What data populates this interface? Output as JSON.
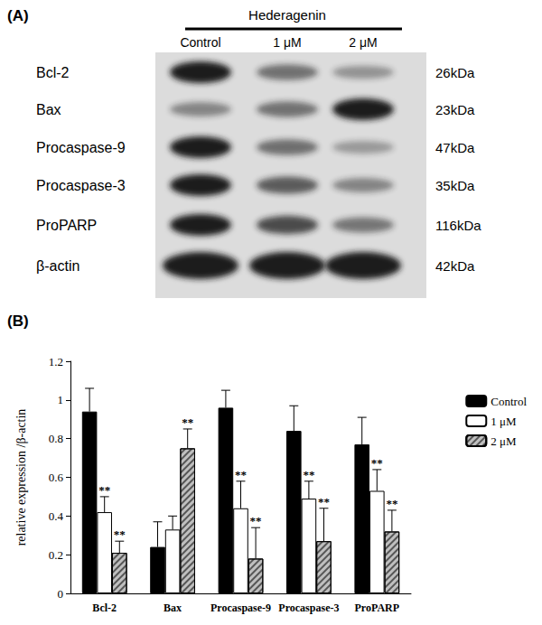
{
  "panel_labels": [
    "(A)",
    "(B)"
  ],
  "blot": {
    "treatment": "Hederagenin",
    "lanes": [
      "Control",
      "1 μM",
      "2 μM"
    ],
    "bands": [
      {
        "name": "Bcl-2",
        "size": "26kDa"
      },
      {
        "name": "Bax",
        "size": "23kDa"
      },
      {
        "name": "Procaspase-9",
        "size": "47kDa"
      },
      {
        "name": "Procaspase-3",
        "size": "35kDa"
      },
      {
        "name": "ProPARP",
        "size": "116kDa"
      },
      {
        "name": "β-actin",
        "size": "42kDa"
      }
    ]
  },
  "chart_data": {
    "type": "bar",
    "y_label": "relative expression /β-actin",
    "categories": [
      "Bcl-2",
      "Bax",
      "Procaspase-9",
      "Procaspase-3",
      "ProPARP"
    ],
    "series": [
      {
        "name": "Control",
        "color": "#000000",
        "values": [
          0.94,
          0.24,
          0.96,
          0.84,
          0.77
        ],
        "errors": [
          0.12,
          0.13,
          0.09,
          0.13,
          0.14
        ],
        "significance": [
          null,
          null,
          null,
          null,
          null
        ]
      },
      {
        "name": "1 μM",
        "color": "#ffffff",
        "values": [
          0.42,
          0.33,
          0.44,
          0.49,
          0.53
        ],
        "errors": [
          0.08,
          0.07,
          0.14,
          0.09,
          0.11
        ],
        "significance": [
          "**",
          null,
          "**",
          "**",
          "**"
        ]
      },
      {
        "name": "2 μM",
        "color": "#bfbfbf",
        "values": [
          0.21,
          0.75,
          0.18,
          0.27,
          0.32
        ],
        "errors": [
          0.06,
          0.1,
          0.16,
          0.17,
          0.11
        ],
        "significance": [
          "**",
          "**",
          "**",
          "**",
          "**"
        ]
      }
    ],
    "ylim": [
      0,
      1.2
    ],
    "yticks": [
      0,
      0.2,
      0.4,
      0.6,
      0.8,
      1,
      1.2
    ],
    "grid": false,
    "legend": "top-right"
  }
}
